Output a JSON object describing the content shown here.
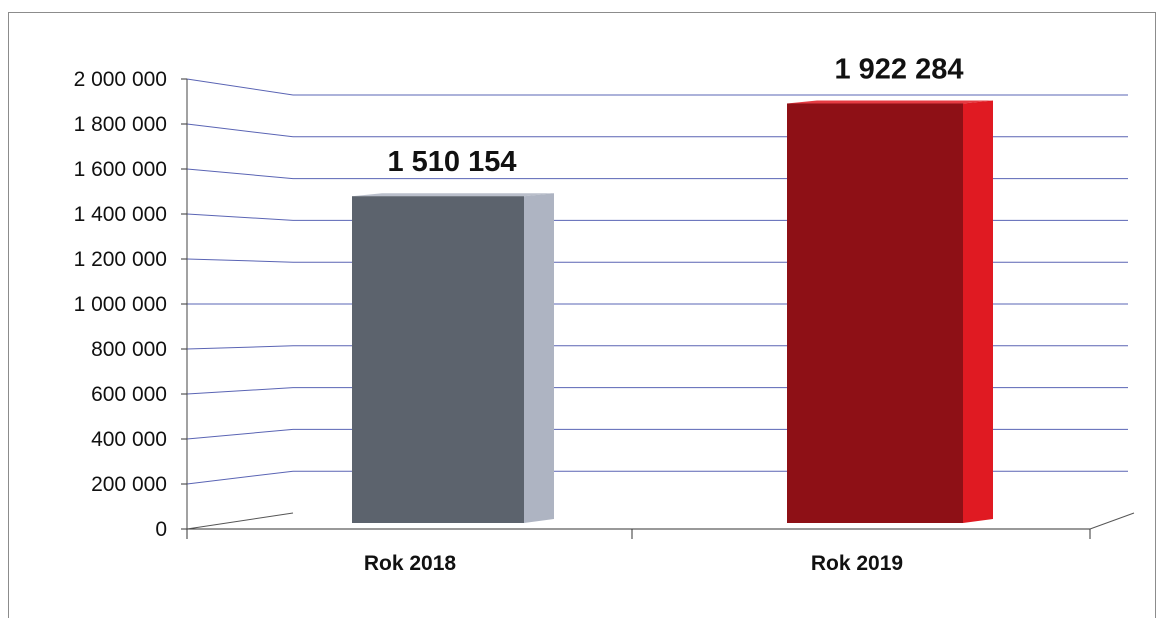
{
  "chart_data": {
    "type": "bar",
    "title": "",
    "xlabel": "",
    "ylabel": "",
    "categories": [
      "Rok 2018",
      "Rok 2019"
    ],
    "values": [
      1510154,
      1922284
    ],
    "value_labels": [
      "1 510 154",
      "1 922 284"
    ],
    "ylim": [
      0,
      2000000
    ],
    "y_tick_labels": [
      "0",
      "200 000",
      "400 000",
      "600 000",
      "800 000",
      "1 000 000",
      "1 200 000",
      "1 400 000",
      "1 600 000",
      "1 800 000",
      "2 000 000"
    ],
    "grid": true,
    "legend": "none",
    "colors": {
      "bar_2018_front": "#5c636d",
      "bar_2018_side": "#aeb4c2",
      "bar_2019_front": "#8e1016",
      "bar_2019_side": "#e01a22",
      "gridline": "#5a64b4"
    }
  }
}
